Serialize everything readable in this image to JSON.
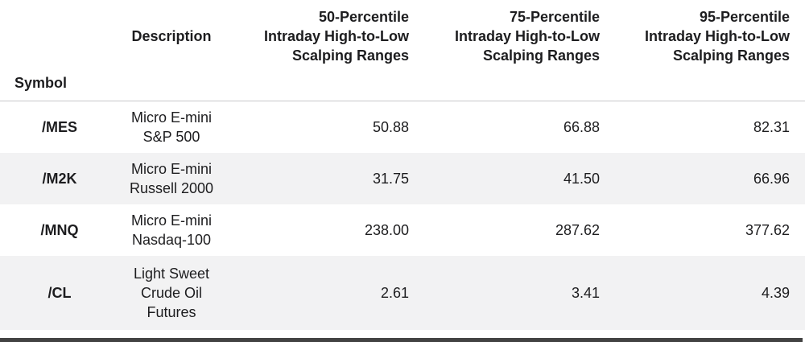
{
  "table": {
    "headers": {
      "symbol": "Symbol",
      "description": "Description",
      "p50": "50-Percentile\nIntraday High-to-Low\nScalping Ranges",
      "p75": "75-Percentile\nIntraday High-to-Low\nScalping Ranges",
      "p95": "95-Percentile\nIntraday High-to-Low\nScalping Ranges"
    },
    "rows": [
      {
        "symbol": "/MES",
        "description": "Micro E-mini\nS&P 500",
        "p50": "50.88",
        "p75": "66.88",
        "p95": "82.31"
      },
      {
        "symbol": "/M2K",
        "description": "Micro E-mini\nRussell 2000",
        "p50": "31.75",
        "p75": "41.50",
        "p95": "66.96"
      },
      {
        "symbol": "/MNQ",
        "description": "Micro E-mini\nNasdaq-100",
        "p50": "238.00",
        "p75": "287.62",
        "p95": "377.62"
      },
      {
        "symbol": "/CL",
        "description": "Light Sweet\nCrude Oil\nFutures",
        "p50": "2.61",
        "p75": "3.41",
        "p95": "4.39"
      }
    ]
  },
  "colors": {
    "text": "#1d1d1f",
    "stripe_row": "#f2f2f3",
    "header_divider": "#c7c7c9",
    "bottom_bar": "#424242"
  },
  "chart_data": {
    "type": "table",
    "columns": [
      "Symbol",
      "Description",
      "50-Percentile Intraday High-to-Low Scalping Ranges",
      "75-Percentile Intraday High-to-Low Scalping Ranges",
      "95-Percentile Intraday High-to-Low Scalping Ranges"
    ],
    "rows": [
      [
        "/MES",
        "Micro E-mini S&P 500",
        50.88,
        66.88,
        82.31
      ],
      [
        "/M2K",
        "Micro E-mini Russell 2000",
        31.75,
        41.5,
        66.96
      ],
      [
        "/MNQ",
        "Micro E-mini Nasdaq-100",
        238.0,
        287.62,
        377.62
      ],
      [
        "/CL",
        "Light Sweet Crude Oil Futures",
        2.61,
        3.41,
        4.39
      ]
    ]
  }
}
